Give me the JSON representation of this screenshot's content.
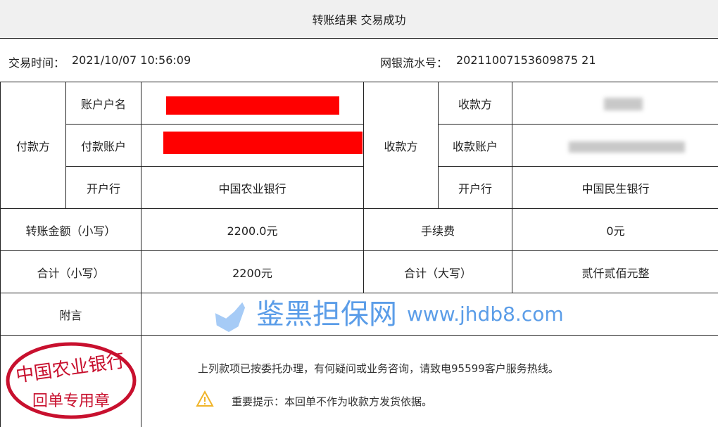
{
  "header": {
    "title": "转账结果 交易成功"
  },
  "info": {
    "time_label": "交易时间：",
    "time_value": "2021/10/07  10:56:09",
    "serial_label": "网银流水号：",
    "serial_value": "20211007153609875 21"
  },
  "payer": {
    "label": "付款方",
    "name_label": "账户户名",
    "account_label": "付款账户",
    "bank_label": "开户行",
    "bank": "中国农业银行"
  },
  "payee": {
    "label": "收款方",
    "name_label": "收款方",
    "account_label": "收款账户",
    "bank_label": "开户行",
    "bank": "中国民生银行"
  },
  "amount": {
    "label": "转账金额（小写）",
    "value": "2200.0元",
    "fee_label": "手续费",
    "fee": "0元"
  },
  "total": {
    "small_label": "合计（小写）",
    "small": "2200元",
    "big_label": "合计（大写）",
    "big": "贰仟贰佰元整"
  },
  "memo": {
    "label": "附言",
    "value": ""
  },
  "stamp": {
    "top": "中国农业银行",
    "bottom": "回单专用章"
  },
  "notices": {
    "line1": "上列款项已按委托办理，有何疑问或业务咨询，请致电95599客户服务热线。",
    "line2": "重要提示：本回单不作为收款方发货依据。"
  },
  "watermark": {
    "cn": "鉴黑担保网",
    "url": "www.jhdb8.com"
  },
  "colors": {
    "redact": "#ff0000",
    "stamp": "#c8102e",
    "watermark": "#4a90e2",
    "warning": "#f0b429"
  }
}
